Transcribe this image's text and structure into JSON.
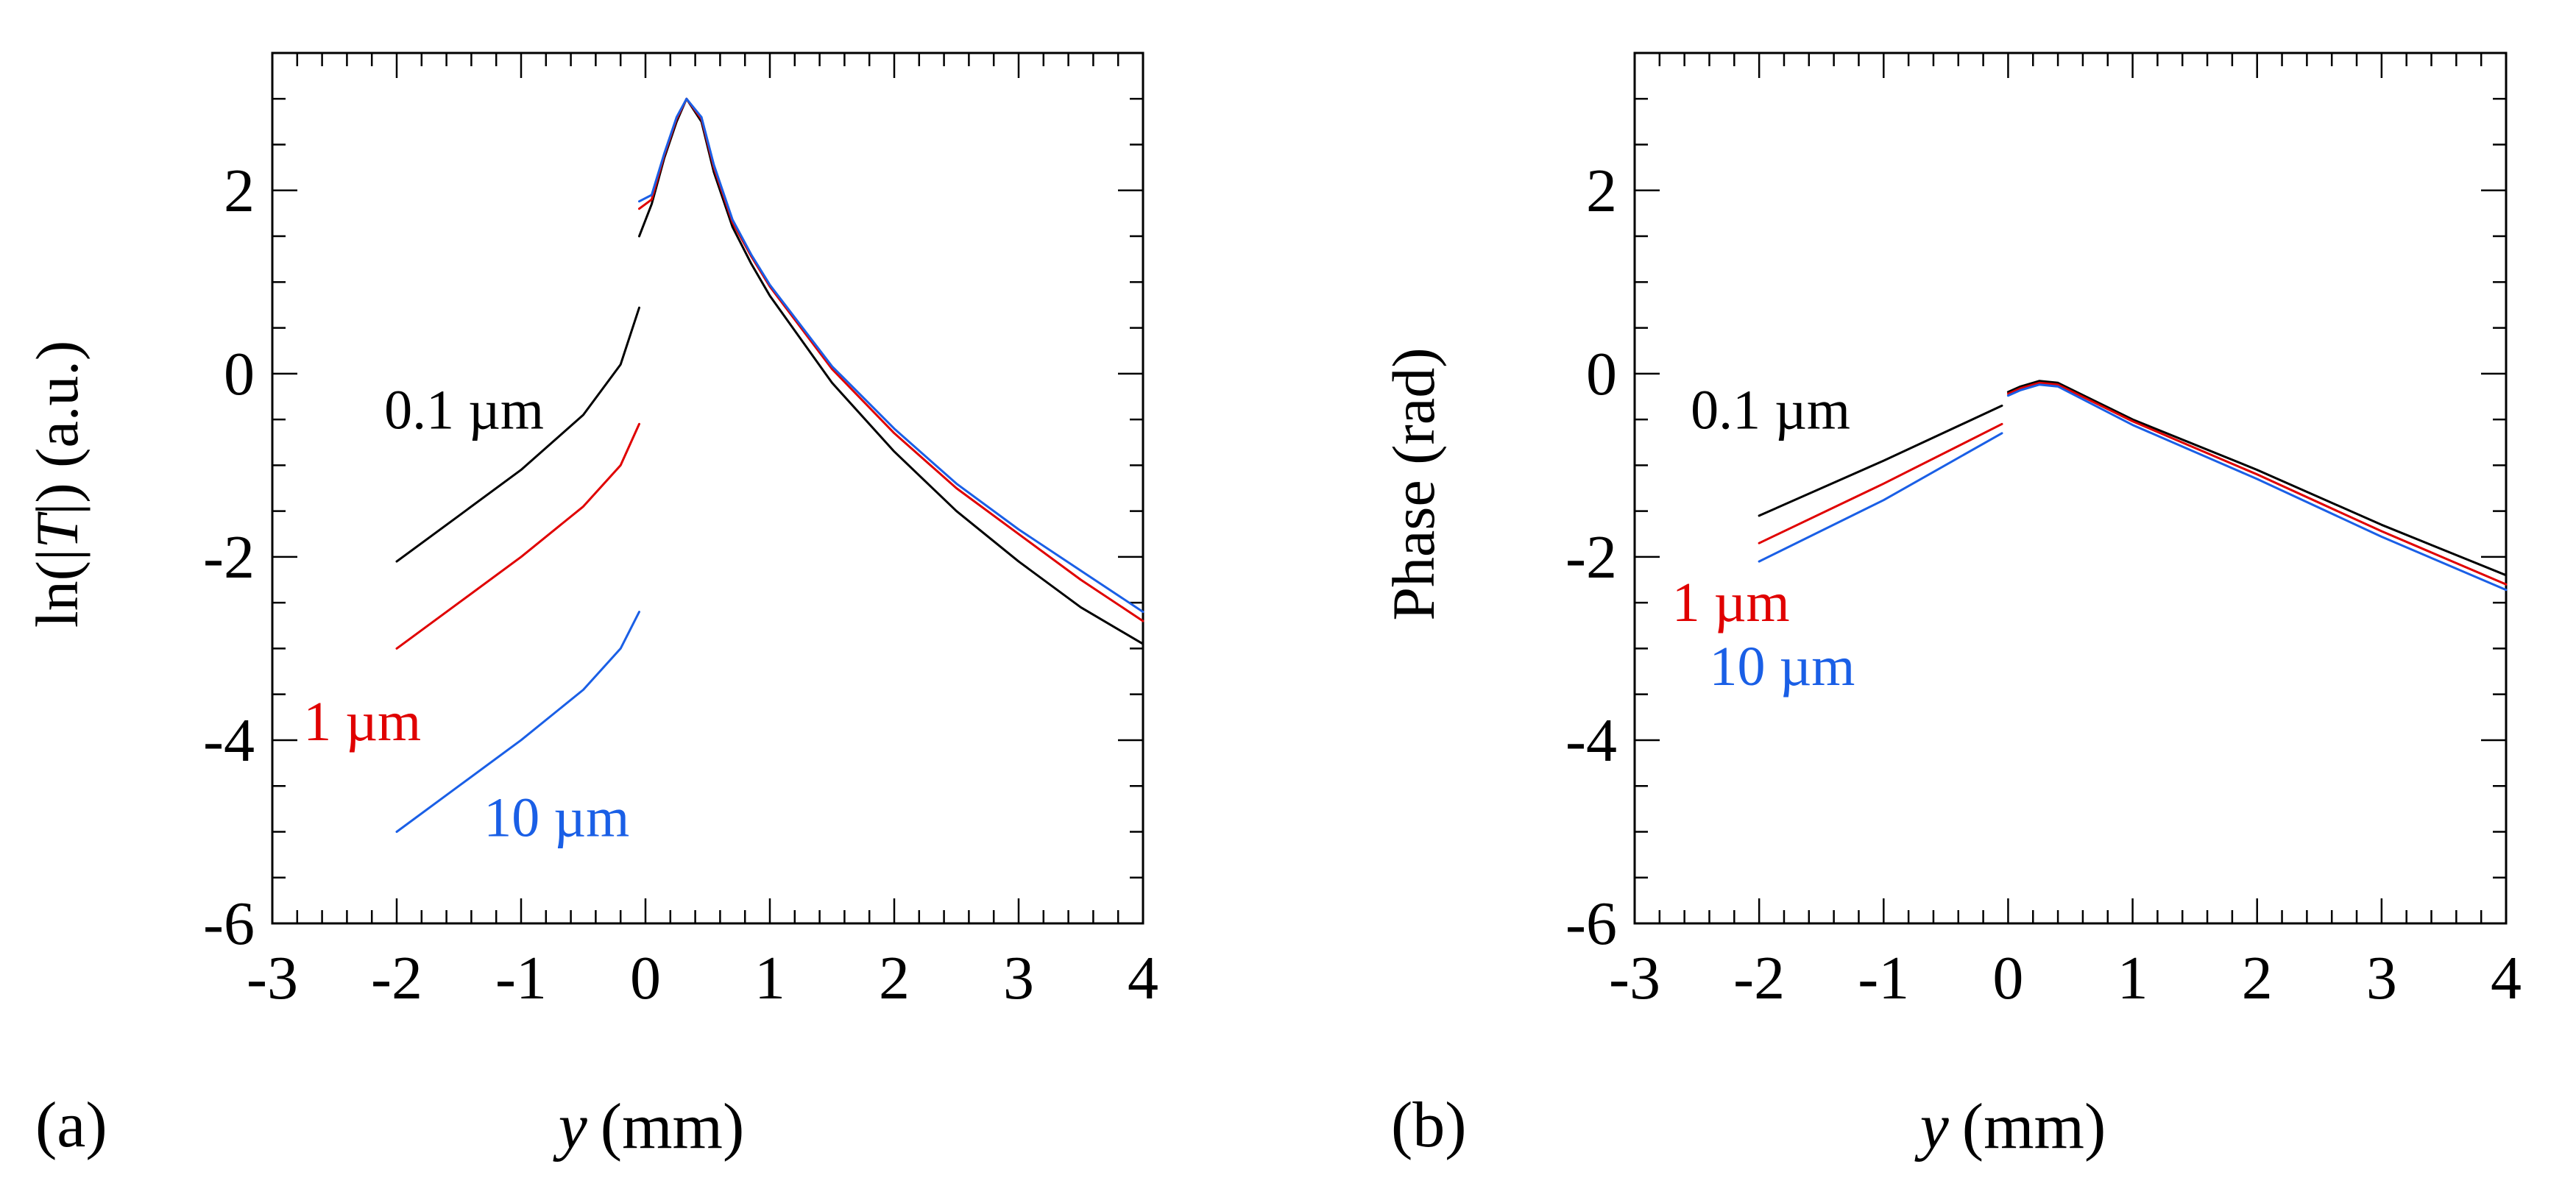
{
  "chart_data": [
    {
      "panel_label": "(a)",
      "type": "line",
      "xlabel_var": "y",
      "xlabel_unit": "(mm)",
      "ylabel": "ln(|T|) (a.u.)",
      "ylabel_parts": [
        "ln(|",
        "T",
        "|) (a.u.)"
      ],
      "xlim": [
        -3,
        4
      ],
      "ylim": [
        -6,
        3.5
      ],
      "xticks": [
        -3,
        -2,
        -1,
        0,
        1,
        2,
        3,
        4
      ],
      "xtick_labels": [
        "-3",
        "-2",
        "-1",
        "0",
        "1",
        "2",
        "3",
        "4"
      ],
      "yticks": [
        -6,
        -4,
        -2,
        0,
        2
      ],
      "ytick_labels": [
        "-6",
        "-4",
        "-2",
        "0",
        "2"
      ],
      "series": [
        {
          "name": "0.1 µm",
          "color": "#000000",
          "segments": [
            [
              [
                -2.0,
                -2.05
              ],
              [
                -1.5,
                -1.55
              ],
              [
                -1.0,
                -1.05
              ],
              [
                -0.5,
                -0.45
              ],
              [
                -0.2,
                0.1
              ],
              [
                -0.05,
                0.72
              ]
            ],
            [
              [
                -0.05,
                1.5
              ],
              [
                0.05,
                1.85
              ],
              [
                0.15,
                2.35
              ],
              [
                0.25,
                2.75
              ],
              [
                0.33,
                3.0
              ],
              [
                0.45,
                2.75
              ],
              [
                0.55,
                2.2
              ],
              [
                0.7,
                1.6
              ],
              [
                0.85,
                1.2
              ],
              [
                1.0,
                0.85
              ],
              [
                1.5,
                -0.1
              ],
              [
                2.0,
                -0.85
              ],
              [
                2.5,
                -1.5
              ],
              [
                3.0,
                -2.05
              ],
              [
                3.5,
                -2.55
              ],
              [
                4.0,
                -2.95
              ]
            ]
          ]
        },
        {
          "name": "1 µm",
          "color": "#e00000",
          "segments": [
            [
              [
                -2.0,
                -3.0
              ],
              [
                -1.5,
                -2.5
              ],
              [
                -1.0,
                -2.0
              ],
              [
                -0.5,
                -1.45
              ],
              [
                -0.2,
                -1.0
              ],
              [
                -0.05,
                -0.55
              ]
            ],
            [
              [
                -0.05,
                1.8
              ],
              [
                0.05,
                1.9
              ],
              [
                0.15,
                2.38
              ],
              [
                0.25,
                2.78
              ],
              [
                0.33,
                3.0
              ],
              [
                0.45,
                2.78
              ],
              [
                0.55,
                2.25
              ],
              [
                0.7,
                1.65
              ],
              [
                0.85,
                1.28
              ],
              [
                1.0,
                0.95
              ],
              [
                1.5,
                0.05
              ],
              [
                2.0,
                -0.65
              ],
              [
                2.5,
                -1.25
              ],
              [
                3.0,
                -1.75
              ],
              [
                3.5,
                -2.25
              ],
              [
                4.0,
                -2.7
              ]
            ]
          ]
        },
        {
          "name": "10 µm",
          "color": "#1a5fe6",
          "segments": [
            [
              [
                -2.0,
                -5.0
              ],
              [
                -1.5,
                -4.5
              ],
              [
                -1.0,
                -4.0
              ],
              [
                -0.5,
                -3.45
              ],
              [
                -0.2,
                -3.0
              ],
              [
                -0.05,
                -2.6
              ]
            ],
            [
              [
                -0.05,
                1.88
              ],
              [
                0.05,
                1.95
              ],
              [
                0.15,
                2.4
              ],
              [
                0.25,
                2.8
              ],
              [
                0.33,
                3.0
              ],
              [
                0.45,
                2.8
              ],
              [
                0.55,
                2.28
              ],
              [
                0.7,
                1.68
              ],
              [
                0.85,
                1.3
              ],
              [
                1.0,
                0.97
              ],
              [
                1.5,
                0.08
              ],
              [
                2.0,
                -0.6
              ],
              [
                2.5,
                -1.2
              ],
              [
                3.0,
                -1.7
              ],
              [
                3.5,
                -2.15
              ],
              [
                4.0,
                -2.6
              ]
            ]
          ]
        }
      ],
      "annotations": [
        {
          "text": "0.1 µm",
          "color": "#000000",
          "x": -2.1,
          "y": -0.6
        },
        {
          "text": "1 µm",
          "color": "#e00000",
          "x": -2.75,
          "y": -4.0
        },
        {
          "text": "10 µm",
          "color": "#1a5fe6",
          "x": -1.3,
          "y": -5.05
        }
      ]
    },
    {
      "panel_label": "(b)",
      "type": "line",
      "xlabel_var": "y",
      "xlabel_unit": "(mm)",
      "ylabel": "Phase (rad)",
      "ylabel_parts": [
        "Phase (rad)",
        "",
        ""
      ],
      "xlim": [
        -3,
        4
      ],
      "ylim": [
        -6,
        3.5
      ],
      "xticks": [
        -3,
        -2,
        -1,
        0,
        1,
        2,
        3,
        4
      ],
      "xtick_labels": [
        "-3",
        "-2",
        "-1",
        "0",
        "1",
        "2",
        "3",
        "4"
      ],
      "yticks": [
        -6,
        -4,
        -2,
        0,
        2
      ],
      "ytick_labels": [
        "-6",
        "-4",
        "-2",
        "0",
        "2"
      ],
      "series": [
        {
          "name": "0.1 µm",
          "color": "#000000",
          "segments": [
            [
              [
                -2.0,
                -1.55
              ],
              [
                -1.0,
                -0.95
              ],
              [
                -0.05,
                -0.35
              ]
            ],
            [
              [
                0.0,
                -0.2
              ],
              [
                0.1,
                -0.14
              ],
              [
                0.25,
                -0.08
              ],
              [
                0.4,
                -0.1
              ],
              [
                0.7,
                -0.3
              ],
              [
                1.0,
                -0.5
              ],
              [
                2.0,
                -1.05
              ],
              [
                3.0,
                -1.65
              ],
              [
                4.0,
                -2.2
              ]
            ]
          ]
        },
        {
          "name": "1 µm",
          "color": "#e00000",
          "segments": [
            [
              [
                -2.0,
                -1.85
              ],
              [
                -1.0,
                -1.2
              ],
              [
                -0.05,
                -0.55
              ]
            ],
            [
              [
                0.0,
                -0.22
              ],
              [
                0.1,
                -0.16
              ],
              [
                0.25,
                -0.1
              ],
              [
                0.4,
                -0.12
              ],
              [
                0.7,
                -0.32
              ],
              [
                1.0,
                -0.52
              ],
              [
                2.0,
                -1.1
              ],
              [
                3.0,
                -1.72
              ],
              [
                4.0,
                -2.3
              ]
            ]
          ]
        },
        {
          "name": "10 µm",
          "color": "#1a5fe6",
          "segments": [
            [
              [
                -2.0,
                -2.05
              ],
              [
                -1.0,
                -1.38
              ],
              [
                -0.05,
                -0.65
              ]
            ],
            [
              [
                0.0,
                -0.24
              ],
              [
                0.1,
                -0.18
              ],
              [
                0.25,
                -0.12
              ],
              [
                0.4,
                -0.14
              ],
              [
                0.7,
                -0.35
              ],
              [
                1.0,
                -0.56
              ],
              [
                2.0,
                -1.15
              ],
              [
                3.0,
                -1.78
              ],
              [
                4.0,
                -2.36
              ]
            ]
          ]
        }
      ],
      "annotations": [
        {
          "text": "0.1 µm",
          "color": "#000000",
          "x": -2.55,
          "y": -0.6
        },
        {
          "text": "1 µm",
          "color": "#e00000",
          "x": -2.7,
          "y": -2.7
        },
        {
          "text": "10 µm",
          "color": "#1a5fe6",
          "x": -2.4,
          "y": -3.4
        }
      ]
    }
  ]
}
